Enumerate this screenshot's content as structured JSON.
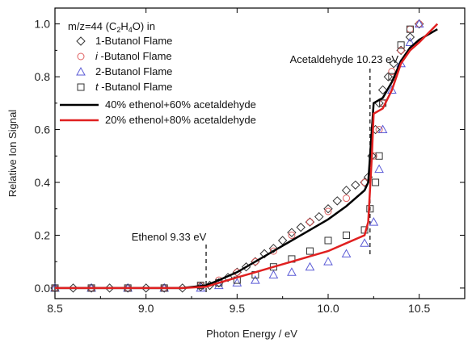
{
  "chart_data": {
    "type": "scatter",
    "xlabel": "Photon Energy / eV",
    "ylabel": "Relative Ion Signal",
    "xlim": [
      8.5,
      10.75
    ],
    "ylim": [
      -0.04,
      1.06
    ],
    "xticks": [
      "8.5",
      "9.0",
      "9.5",
      "10.0",
      "10.5"
    ],
    "yticks": [
      "0.0",
      "0.2",
      "0.4",
      "0.6",
      "0.8",
      "1.0"
    ],
    "grid": false,
    "legend": {
      "placement": "top-left",
      "heading": "m/z=44 (C",
      "heading_sub1": "2",
      "heading_mid": "H",
      "heading_sub2": "4",
      "heading_end": "O) in"
    },
    "annotations": [
      {
        "label": "Ethenol 9.33 eV",
        "x": 9.33
      },
      {
        "label": "Acetaldehyde 10.23 eV",
        "x": 10.23
      }
    ],
    "series": [
      {
        "name_prefix": "",
        "name": "1-Butanol Flame",
        "marker": "diamond",
        "color": "#333333",
        "points": [
          [
            8.5,
            0.0
          ],
          [
            8.6,
            0.0
          ],
          [
            8.7,
            0.0
          ],
          [
            8.8,
            0.0
          ],
          [
            8.9,
            0.0
          ],
          [
            9.0,
            0.0
          ],
          [
            9.1,
            0.0
          ],
          [
            9.2,
            0.0
          ],
          [
            9.3,
            0.005
          ],
          [
            9.35,
            0.01
          ],
          [
            9.4,
            0.02
          ],
          [
            9.45,
            0.04
          ],
          [
            9.5,
            0.06
          ],
          [
            9.55,
            0.08
          ],
          [
            9.6,
            0.1
          ],
          [
            9.65,
            0.13
          ],
          [
            9.7,
            0.15
          ],
          [
            9.75,
            0.18
          ],
          [
            9.8,
            0.21
          ],
          [
            9.85,
            0.23
          ],
          [
            9.9,
            0.25
          ],
          [
            9.95,
            0.27
          ],
          [
            10.0,
            0.3
          ],
          [
            10.05,
            0.33
          ],
          [
            10.1,
            0.37
          ],
          [
            10.15,
            0.39
          ],
          [
            10.2,
            0.4
          ],
          [
            10.22,
            0.42
          ],
          [
            10.24,
            0.5
          ],
          [
            10.26,
            0.6
          ],
          [
            10.28,
            0.7
          ],
          [
            10.3,
            0.75
          ],
          [
            10.33,
            0.8
          ],
          [
            10.36,
            0.85
          ],
          [
            10.4,
            0.9
          ],
          [
            10.45,
            0.95
          ],
          [
            10.5,
            1.0
          ]
        ]
      },
      {
        "name_prefix": "i",
        "name": " -Butanol Flame",
        "marker": "circle",
        "color": "#e06060",
        "points": [
          [
            8.5,
            0.0
          ],
          [
            8.7,
            0.0
          ],
          [
            8.9,
            0.0
          ],
          [
            9.1,
            0.0
          ],
          [
            9.3,
            0.01
          ],
          [
            9.4,
            0.03
          ],
          [
            9.5,
            0.06
          ],
          [
            9.6,
            0.1
          ],
          [
            9.7,
            0.14
          ],
          [
            9.8,
            0.2
          ],
          [
            9.9,
            0.25
          ],
          [
            10.0,
            0.29
          ],
          [
            10.1,
            0.34
          ],
          [
            10.2,
            0.4
          ],
          [
            10.25,
            0.5
          ],
          [
            10.28,
            0.6
          ],
          [
            10.3,
            0.7
          ],
          [
            10.35,
            0.82
          ],
          [
            10.4,
            0.9
          ],
          [
            10.45,
            0.98
          ],
          [
            10.5,
            1.0
          ]
        ]
      },
      {
        "name_prefix": "",
        "name": "2-Butanol Flame",
        "marker": "triangle",
        "color": "#5b5bd6",
        "points": [
          [
            8.5,
            0.0
          ],
          [
            8.7,
            0.0
          ],
          [
            8.9,
            0.0
          ],
          [
            9.1,
            0.0
          ],
          [
            9.3,
            0.0
          ],
          [
            9.4,
            0.01
          ],
          [
            9.5,
            0.02
          ],
          [
            9.6,
            0.03
          ],
          [
            9.7,
            0.05
          ],
          [
            9.8,
            0.06
          ],
          [
            9.9,
            0.08
          ],
          [
            10.0,
            0.1
          ],
          [
            10.1,
            0.13
          ],
          [
            10.2,
            0.17
          ],
          [
            10.25,
            0.25
          ],
          [
            10.28,
            0.45
          ],
          [
            10.3,
            0.6
          ],
          [
            10.35,
            0.75
          ],
          [
            10.4,
            0.85
          ],
          [
            10.45,
            0.93
          ],
          [
            10.5,
            1.0
          ]
        ]
      },
      {
        "name_prefix": "t",
        "name": " -Butanol Flame",
        "marker": "square",
        "color": "#333333",
        "points": [
          [
            8.5,
            0.0
          ],
          [
            8.7,
            0.0
          ],
          [
            8.9,
            0.0
          ],
          [
            9.1,
            0.0
          ],
          [
            9.3,
            0.01
          ],
          [
            9.4,
            0.02
          ],
          [
            9.5,
            0.03
          ],
          [
            9.6,
            0.05
          ],
          [
            9.7,
            0.08
          ],
          [
            9.8,
            0.11
          ],
          [
            9.9,
            0.14
          ],
          [
            10.0,
            0.18
          ],
          [
            10.1,
            0.2
          ],
          [
            10.2,
            0.22
          ],
          [
            10.23,
            0.3
          ],
          [
            10.26,
            0.4
          ],
          [
            10.28,
            0.5
          ],
          [
            10.3,
            0.7
          ],
          [
            10.35,
            0.8
          ],
          [
            10.4,
            0.92
          ],
          [
            10.45,
            0.98
          ]
        ]
      }
    ],
    "lines": [
      {
        "name": "40% ethenol+60% acetaldehyde",
        "color": "#000000",
        "points": [
          [
            8.5,
            0.0
          ],
          [
            9.2,
            0.0
          ],
          [
            9.33,
            0.01
          ],
          [
            9.4,
            0.03
          ],
          [
            9.5,
            0.06
          ],
          [
            9.6,
            0.1
          ],
          [
            9.7,
            0.14
          ],
          [
            9.8,
            0.18
          ],
          [
            9.9,
            0.22
          ],
          [
            10.0,
            0.26
          ],
          [
            10.1,
            0.31
          ],
          [
            10.2,
            0.37
          ],
          [
            10.22,
            0.4
          ],
          [
            10.24,
            0.6
          ],
          [
            10.25,
            0.7
          ],
          [
            10.3,
            0.72
          ],
          [
            10.35,
            0.78
          ],
          [
            10.4,
            0.86
          ],
          [
            10.45,
            0.91
          ],
          [
            10.5,
            0.94
          ],
          [
            10.6,
            0.98
          ]
        ]
      },
      {
        "name": "20% ethenol+80% acetaldehyde",
        "color": "#e02020",
        "points": [
          [
            8.5,
            0.0
          ],
          [
            9.2,
            0.0
          ],
          [
            9.33,
            0.005
          ],
          [
            9.4,
            0.02
          ],
          [
            9.5,
            0.04
          ],
          [
            9.6,
            0.06
          ],
          [
            9.7,
            0.08
          ],
          [
            9.8,
            0.1
          ],
          [
            9.9,
            0.12
          ],
          [
            10.0,
            0.14
          ],
          [
            10.1,
            0.17
          ],
          [
            10.2,
            0.2
          ],
          [
            10.22,
            0.25
          ],
          [
            10.24,
            0.5
          ],
          [
            10.25,
            0.66
          ],
          [
            10.3,
            0.68
          ],
          [
            10.35,
            0.75
          ],
          [
            10.4,
            0.85
          ],
          [
            10.45,
            0.9
          ],
          [
            10.5,
            0.93
          ],
          [
            10.6,
            1.0
          ]
        ]
      }
    ]
  }
}
